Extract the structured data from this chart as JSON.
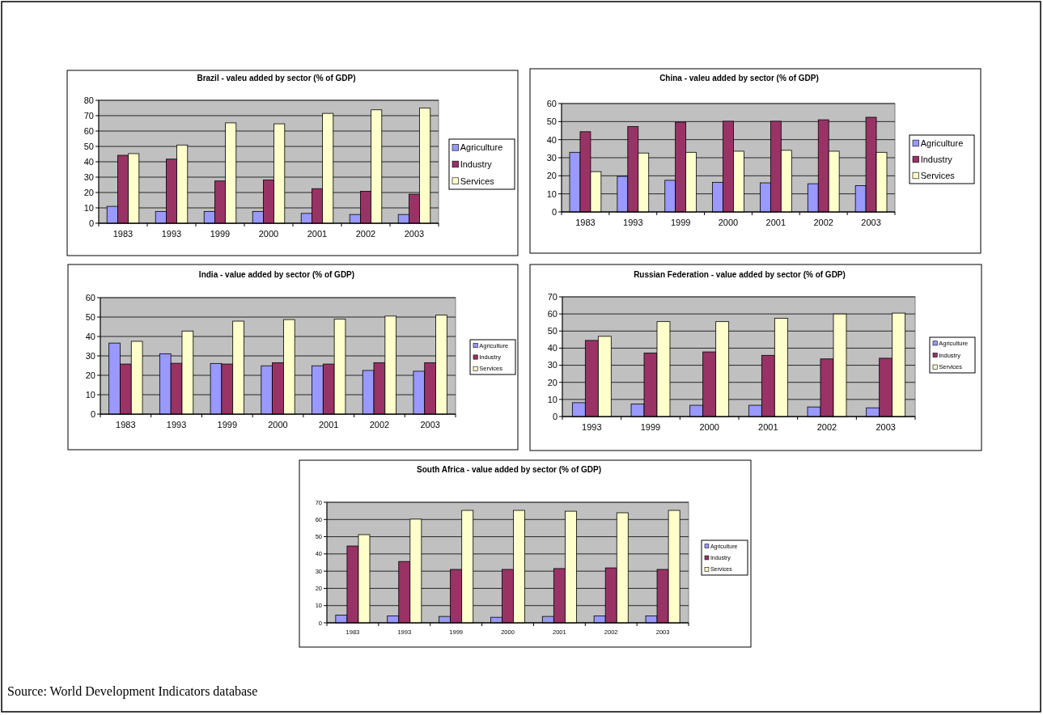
{
  "chart_data": [
    {
      "type": "bar",
      "title": "Brazil - valeu added by sector (% of GDP)",
      "categories": [
        "1983",
        "1993",
        "1999",
        "2000",
        "2001",
        "2002",
        "2003"
      ],
      "series": [
        {
          "name": "Agriculture",
          "color": "#9999ff",
          "values": [
            11,
            7.7,
            7.7,
            7.7,
            6.4,
            5.7,
            5.7
          ]
        },
        {
          "name": "Industry",
          "color": "#993366",
          "values": [
            44.2,
            41.7,
            27.5,
            28.1,
            22.5,
            20.8,
            18.9
          ]
        },
        {
          "name": "Services",
          "color": "#ffffcc",
          "values": [
            45.3,
            50.9,
            65.3,
            64.7,
            71.5,
            73.8,
            74.9
          ]
        }
      ],
      "ylim": [
        0,
        80
      ],
      "yticks": [
        0,
        10,
        20,
        30,
        40,
        50,
        60,
        70,
        80
      ],
      "grid": "y",
      "legend": "right"
    },
    {
      "type": "bar",
      "title": "China - valeu added by sector (% of GDP)",
      "categories": [
        "1983",
        "1993",
        "1999",
        "2000",
        "2001",
        "2002",
        "2003"
      ],
      "series": [
        {
          "name": "Agriculture",
          "color": "#9999ff",
          "values": [
            33,
            19.7,
            17.5,
            16.4,
            16.1,
            15.6,
            14.6
          ]
        },
        {
          "name": "Industry",
          "color": "#993366",
          "values": [
            44.4,
            47.3,
            49.7,
            50.2,
            50.2,
            51,
            52.4
          ]
        },
        {
          "name": "Services",
          "color": "#ffffcc",
          "values": [
            22.3,
            32.6,
            33,
            33.6,
            34.1,
            33.6,
            33
          ]
        }
      ],
      "ylim": [
        0,
        60
      ],
      "yticks": [
        0,
        10,
        20,
        30,
        40,
        50,
        60
      ],
      "grid": "y",
      "legend": "right"
    },
    {
      "type": "bar",
      "title": "India - value added by sector (% of GDP)",
      "categories": [
        "1983",
        "1993",
        "1999",
        "2000",
        "2001",
        "2002",
        "2003"
      ],
      "series": [
        {
          "name": "Agriculture",
          "color": "#9999ff",
          "values": [
            36.6,
            31.1,
            26.1,
            24.9,
            24.9,
            22.5,
            22.1
          ]
        },
        {
          "name": "Industry",
          "color": "#993366",
          "values": [
            25.8,
            26.2,
            25.8,
            26.5,
            25.8,
            26.5,
            26.5
          ]
        },
        {
          "name": "Services",
          "color": "#ffffcc",
          "values": [
            37.5,
            42.8,
            47.9,
            48.7,
            49,
            50.5,
            51
          ]
        }
      ],
      "ylim": [
        0,
        60
      ],
      "yticks": [
        0,
        10,
        20,
        30,
        40,
        50,
        60
      ],
      "grid": "y",
      "legend": "right"
    },
    {
      "type": "bar",
      "title": "Russian Federation - value added by sector (% of GDP)",
      "categories": [
        "1993",
        "1999",
        "2000",
        "2001",
        "2002",
        "2003"
      ],
      "series": [
        {
          "name": "Agriculture",
          "color": "#9999ff",
          "values": [
            8.1,
            7.3,
            6.6,
            6.6,
            5.6,
            5.1
          ]
        },
        {
          "name": "Industry",
          "color": "#993366",
          "values": [
            44.5,
            37.1,
            37.8,
            35.8,
            33.7,
            34.1
          ]
        },
        {
          "name": "Services",
          "color": "#ffffcc",
          "values": [
            46.9,
            55.5,
            55.5,
            57.5,
            60,
            60.5
          ]
        }
      ],
      "ylim": [
        0,
        70
      ],
      "yticks": [
        0,
        10,
        20,
        30,
        40,
        50,
        60,
        70
      ],
      "grid": "y",
      "legend": "right"
    },
    {
      "type": "bar",
      "title": "South Africa - value added by sector (% of GDP)",
      "categories": [
        "1983",
        "1993",
        "1999",
        "2000",
        "2001",
        "2002",
        "2003"
      ],
      "series": [
        {
          "name": "Agriculture",
          "color": "#9999ff",
          "values": [
            4.5,
            4,
            3.7,
            3.2,
            3.7,
            4,
            4
          ]
        },
        {
          "name": "Industry",
          "color": "#993366",
          "values": [
            44.6,
            35.6,
            31,
            31,
            31.5,
            31.9,
            31
          ]
        },
        {
          "name": "Services",
          "color": "#ffffcc",
          "values": [
            51.2,
            60.2,
            65.3,
            65.3,
            64.8,
            63.9,
            65.3
          ]
        }
      ],
      "ylim": [
        0,
        70
      ],
      "yticks": [
        0,
        10,
        20,
        30,
        40,
        50,
        60,
        70
      ],
      "grid": "y",
      "legend": "right",
      "annotations": [
        "Source: World Development Indicators database"
      ]
    }
  ]
}
